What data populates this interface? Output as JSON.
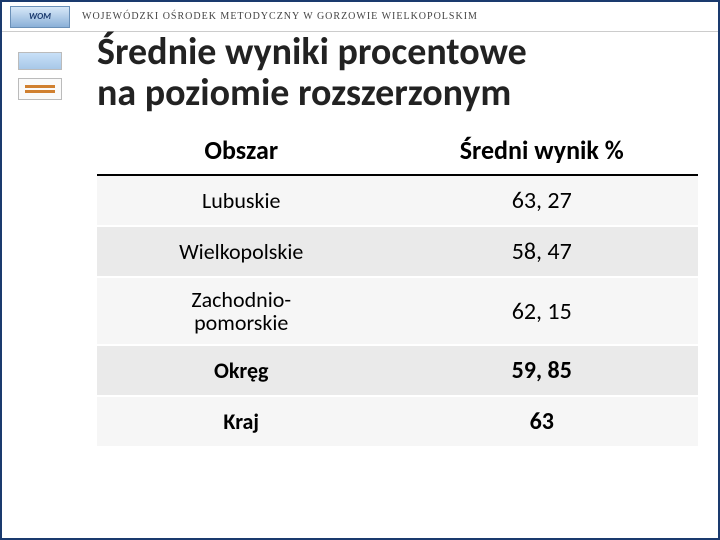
{
  "header": {
    "logo_text": "WOM",
    "org_line": "WOJEWÓDZKI  OŚRODEK  METODYCZNY  W  GORZOWIE  WIELKOPOLSKIM"
  },
  "title_line1": "Średnie wyniki procentowe",
  "title_line2": "na poziomie rozszerzonym",
  "table": {
    "type": "table",
    "columns": [
      "Obszar",
      "Średni wynik %"
    ],
    "rows": [
      {
        "region": "Lubuskie",
        "value": "63, 27",
        "bold": false,
        "alt": false,
        "multiline": false
      },
      {
        "region": "Wielkopolskie",
        "value": "58, 47",
        "bold": false,
        "alt": true,
        "multiline": false
      },
      {
        "region": "Zachodnio-\npomorskie",
        "value": "62, 15",
        "bold": false,
        "alt": false,
        "multiline": true
      },
      {
        "region": "Okręg",
        "value": "59, 85",
        "bold": true,
        "alt": true,
        "multiline": false
      },
      {
        "region": "Kraj",
        "value": "63",
        "bold": true,
        "alt": false,
        "multiline": false
      }
    ],
    "header_fontsize": 26,
    "cell_fontsize": 24,
    "alt_row_bg": "#eaeaea",
    "row_bg": "#f6f6f6",
    "border_color": "#000000"
  },
  "colors": {
    "frame": "#1a3a6e",
    "text": "#222222"
  }
}
